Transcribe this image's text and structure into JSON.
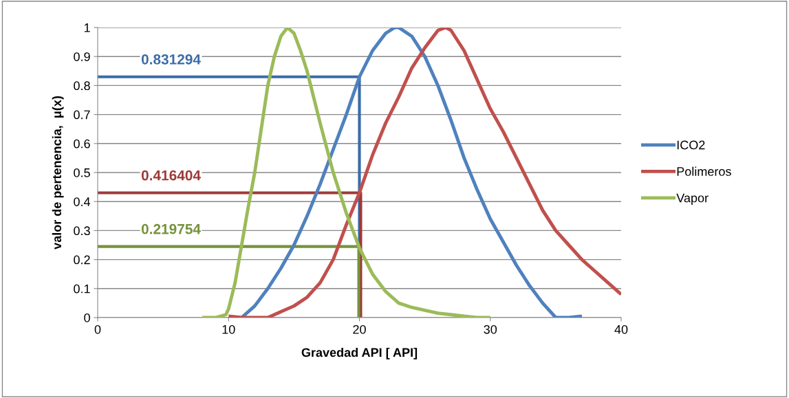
{
  "chart_data": {
    "type": "line",
    "xlabel": "Gravedad API [ API]",
    "ylabel": "valor de pertenencia,  μ(x)",
    "xlim": [
      0,
      40
    ],
    "xticks": [
      0,
      10,
      20,
      30,
      40
    ],
    "ylim": [
      0,
      1
    ],
    "yticks": [
      0,
      {
        "value": 0.1,
        "label": "0.1"
      },
      {
        "value": 0.2,
        "label": "0.2"
      },
      {
        "value": 0.3,
        "label": "0.3"
      },
      {
        "value": 0.4,
        "label": "0.4"
      },
      {
        "value": 0.5,
        "label": "0.5"
      },
      {
        "value": 0.6,
        "label": "0.6"
      },
      {
        "value": 0.7,
        "label": "0.7"
      },
      {
        "value": 0.8,
        "label": "0.8"
      },
      {
        "value": 0.9,
        "label": "0.9"
      },
      1
    ],
    "grid": "y",
    "legend": "right",
    "marker": "none",
    "line_style": "solid",
    "series": [
      {
        "name": "ICO2",
        "color": "#4f81bd",
        "x": [
          11,
          12,
          13,
          14,
          15,
          16,
          17,
          18,
          19,
          20,
          21,
          22,
          22.7,
          23,
          24,
          25,
          26,
          27,
          28,
          29,
          30,
          31,
          32,
          33,
          34,
          35,
          36,
          37
        ],
        "values": [
          0,
          0.04,
          0.1,
          0.17,
          0.25,
          0.35,
          0.46,
          0.58,
          0.7,
          0.83,
          0.92,
          0.98,
          1,
          1,
          0.97,
          0.9,
          0.8,
          0.68,
          0.55,
          0.44,
          0.34,
          0.26,
          0.18,
          0.11,
          0.05,
          0,
          0,
          0.005
        ]
      },
      {
        "name": "Polimeros",
        "color": "#c0504d",
        "x": [
          10,
          11,
          12,
          13,
          14,
          15,
          16,
          17,
          18,
          19,
          20,
          21,
          22,
          23,
          24,
          25,
          26,
          26.6,
          27,
          28,
          29,
          30,
          31,
          32,
          33,
          34,
          35,
          36,
          37,
          38,
          39,
          40
        ],
        "values": [
          0.005,
          0,
          0,
          0,
          0.02,
          0.04,
          0.07,
          0.12,
          0.2,
          0.32,
          0.43,
          0.56,
          0.67,
          0.76,
          0.86,
          0.93,
          0.99,
          1,
          0.99,
          0.92,
          0.82,
          0.72,
          0.64,
          0.55,
          0.46,
          0.37,
          0.3,
          0.25,
          0.2,
          0.16,
          0.12,
          0.08
        ]
      },
      {
        "name": "Vapor",
        "color": "#9bbb59",
        "x": [
          8,
          9,
          9.8,
          10,
          10.5,
          11,
          11.5,
          12,
          12.5,
          13,
          13.5,
          14,
          14.5,
          15,
          15.5,
          16,
          17,
          18,
          19,
          20,
          21,
          22,
          23,
          24,
          25,
          26,
          27,
          28,
          29,
          30
        ],
        "values": [
          0,
          0,
          0.01,
          0.03,
          0.12,
          0.25,
          0.38,
          0.5,
          0.65,
          0.8,
          0.9,
          0.97,
          1,
          0.98,
          0.92,
          0.85,
          0.67,
          0.5,
          0.36,
          0.24,
          0.15,
          0.09,
          0.05,
          0.035,
          0.025,
          0.015,
          0.01,
          0.005,
          0,
          0
        ]
      },
      {
        "color": "#3a6ca8",
        "x": [
          0,
          20,
          20
        ],
        "values": [
          0.83,
          0.83,
          0
        ]
      },
      {
        "color": "#9e3a38",
        "x": [
          0,
          20.1,
          20.1
        ],
        "values": [
          0.43,
          0.43,
          0
        ]
      },
      {
        "color": "#76923c",
        "x": [
          0,
          19.95,
          19.95
        ],
        "values": [
          0.245,
          0.245,
          0
        ]
      }
    ],
    "annotations": [
      "0.831294",
      "0.416404",
      "0.219754"
    ]
  }
}
